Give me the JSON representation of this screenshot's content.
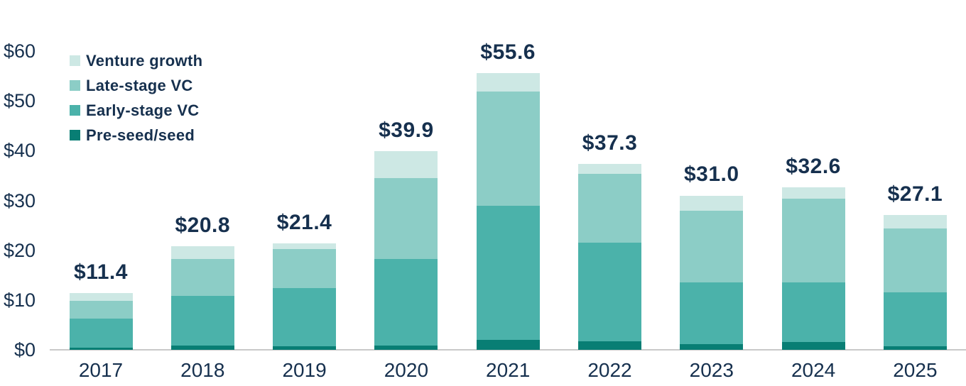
{
  "colors": {
    "text": "#16304e",
    "axis_line": "#c9c9c9",
    "background": "#ffffff",
    "venture_growth": "#cde8e4",
    "late_stage_vc": "#8ccdc6",
    "early_stage_vc": "#4bb2aa",
    "pre_seed_seed": "#087e74"
  },
  "legend": {
    "items": [
      {
        "label": "Venture growth",
        "color": "#cde8e4"
      },
      {
        "label": "Late-stage VC",
        "color": "#8ccdc6"
      },
      {
        "label": "Early-stage VC",
        "color": "#4bb2aa"
      },
      {
        "label": "Pre-seed/seed",
        "color": "#087e74"
      }
    ]
  },
  "chart_data": {
    "type": "bar",
    "stacked": true,
    "title": "",
    "xlabel": "",
    "ylabel": "",
    "ylim": [
      0,
      60
    ],
    "grid": false,
    "legend_position": "top-left",
    "categories": [
      "2017",
      "2018",
      "2019",
      "2020",
      "2021",
      "2022",
      "2023",
      "2024",
      "2025"
    ],
    "series": [
      {
        "name": "Pre-seed/seed",
        "color": "#087e74",
        "values": [
          0.4,
          0.9,
          0.7,
          0.9,
          2.0,
          1.7,
          1.1,
          1.6,
          0.7
        ]
      },
      {
        "name": "Early-stage VC",
        "color": "#4bb2aa",
        "values": [
          5.9,
          9.9,
          11.7,
          17.4,
          26.9,
          19.8,
          12.5,
          12.0,
          10.9
        ]
      },
      {
        "name": "Late-stage VC",
        "color": "#8ccdc6",
        "values": [
          3.6,
          7.5,
          7.9,
          16.2,
          23.0,
          13.8,
          14.4,
          16.8,
          12.8
        ]
      },
      {
        "name": "Venture growth",
        "color": "#cde8e4",
        "values": [
          1.5,
          2.5,
          1.1,
          5.4,
          3.7,
          2.0,
          3.0,
          2.2,
          2.7
        ]
      }
    ],
    "totals": [
      11.4,
      20.8,
      21.4,
      39.9,
      55.6,
      37.3,
      31.0,
      32.6,
      27.1
    ],
    "total_labels": [
      "$11.4",
      "$20.8",
      "$21.4",
      "$39.9",
      "$55.6",
      "$37.3",
      "$31.0",
      "$32.6",
      "$27.1"
    ],
    "y_ticks": [
      {
        "label": "$0",
        "value": 0
      },
      {
        "label": "$10",
        "value": 10
      },
      {
        "label": "$20",
        "value": 20
      },
      {
        "label": "$30",
        "value": 30
      },
      {
        "label": "$40",
        "value": 40
      },
      {
        "label": "$50",
        "value": 50
      },
      {
        "label": "$60",
        "value": 60
      }
    ]
  }
}
